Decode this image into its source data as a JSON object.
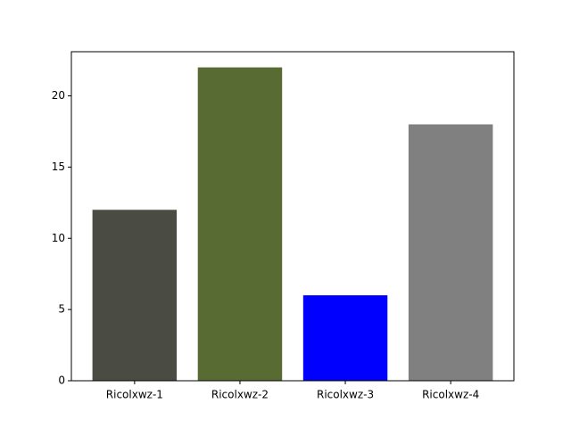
{
  "chart_data": {
    "type": "bar",
    "categories": [
      "Ricolxwz-1",
      "Ricolxwz-2",
      "Ricolxwz-3",
      "Ricolxwz-4"
    ],
    "values": [
      12,
      22,
      6,
      18
    ],
    "colors": [
      "#4a4b43",
      "#586b33",
      "#0000ff",
      "#808080"
    ],
    "ylim": [
      0,
      23.1
    ],
    "yticks": [
      0,
      5,
      10,
      15,
      20
    ]
  }
}
